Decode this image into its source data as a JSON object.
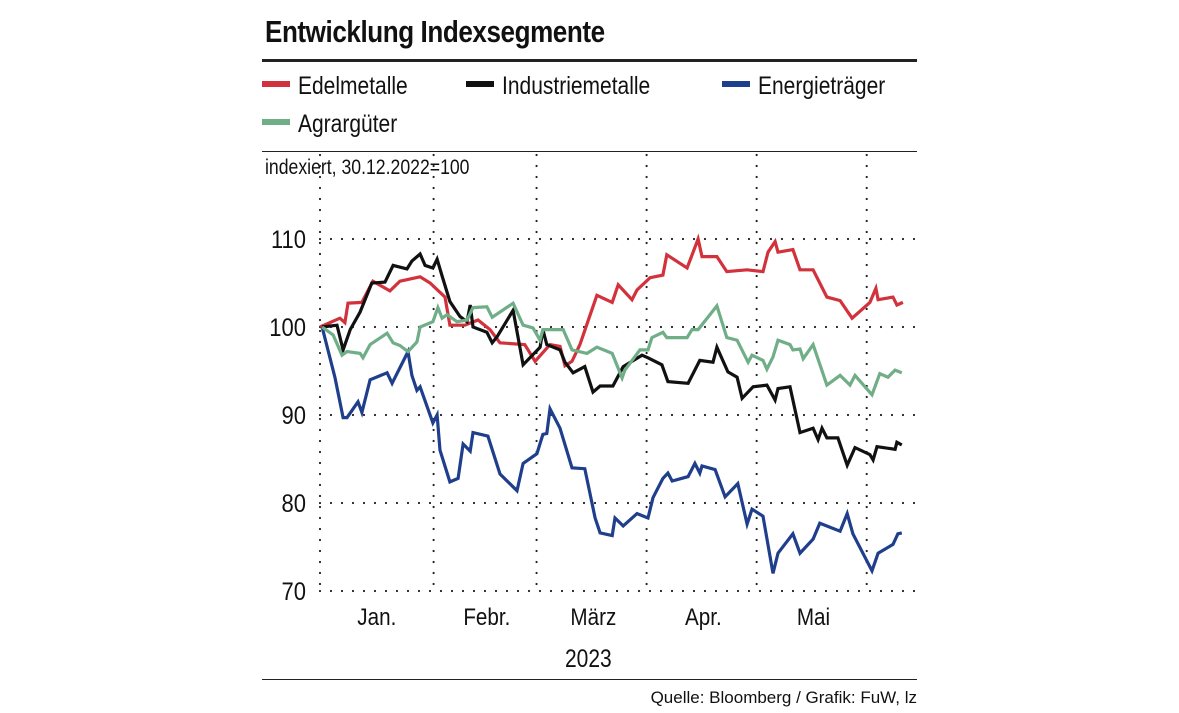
{
  "chart_data": {
    "type": "line",
    "title": "Entwicklung Indexsegmente",
    "subtitle": "indexiert, 30.12.2022=100",
    "xlabel": "2023",
    "ylabel": "",
    "source": "Quelle: Bloomberg / Grafik: FuW, lz",
    "x_unit": "days since 30.12.2022",
    "xlim": [
      0,
      168
    ],
    "ylim": [
      70,
      112
    ],
    "yticks": [
      70,
      80,
      90,
      100,
      110
    ],
    "ytick_labels": [
      "70",
      "80",
      "90",
      "100",
      "110"
    ],
    "month_boundaries": [
      0,
      32,
      61,
      92,
      123,
      154
    ],
    "month_labels": [
      {
        "label": "Jan.",
        "day": 16
      },
      {
        "label": "Febr.",
        "day": 47
      },
      {
        "label": "März",
        "day": 77
      },
      {
        "label": "Apr.",
        "day": 108
      },
      {
        "label": "Mai",
        "day": 139
      }
    ],
    "grid": true,
    "legend_position": "top",
    "series": [
      {
        "name": "Edelmetalle",
        "color": "#d2323c",
        "points": [
          [
            0,
            100
          ],
          [
            5.6,
            101.0
          ],
          [
            7,
            100.5
          ],
          [
            7.9,
            102.7
          ],
          [
            11.8,
            102.8
          ],
          [
            14.9,
            105.2
          ],
          [
            19.7,
            104.1
          ],
          [
            22.5,
            105.2
          ],
          [
            28.2,
            105.7
          ],
          [
            31,
            105.0
          ],
          [
            35.2,
            103.4
          ],
          [
            36.6,
            100.2
          ],
          [
            40.8,
            100.2
          ],
          [
            44.5,
            100.8
          ],
          [
            47.9,
            99.7
          ],
          [
            50.7,
            98.2
          ],
          [
            57.7,
            98.0
          ],
          [
            60.6,
            96.1
          ],
          [
            64.8,
            98.0
          ],
          [
            67.6,
            97.8
          ],
          [
            69,
            95.6
          ],
          [
            71,
            96.1
          ],
          [
            73.2,
            98.0
          ],
          [
            76.1,
            101.4
          ],
          [
            78,
            103.6
          ],
          [
            82.3,
            102.8
          ],
          [
            84,
            104.8
          ],
          [
            87.9,
            103.1
          ],
          [
            89.3,
            104.2
          ],
          [
            93,
            105.6
          ],
          [
            96.6,
            105.9
          ],
          [
            97.7,
            108.2
          ],
          [
            103.4,
            106.7
          ],
          [
            106.5,
            110.0
          ],
          [
            107.6,
            108.0
          ],
          [
            111.8,
            108.0
          ],
          [
            114.6,
            106.3
          ],
          [
            120.3,
            106.5
          ],
          [
            124.8,
            106.3
          ],
          [
            126.2,
            108.5
          ],
          [
            128.2,
            109.7
          ],
          [
            129,
            108.5
          ],
          [
            133.2,
            108.8
          ],
          [
            135.2,
            106.5
          ],
          [
            138.9,
            106.5
          ],
          [
            142.8,
            103.4
          ],
          [
            146.5,
            103.0
          ],
          [
            149.9,
            101.0
          ],
          [
            154.9,
            102.8
          ],
          [
            156.6,
            104.4
          ],
          [
            157.2,
            103.1
          ],
          [
            161.4,
            103.4
          ],
          [
            162.5,
            102.5
          ],
          [
            164.2,
            102.8
          ]
        ]
      },
      {
        "name": "Industriemetalle",
        "color": "#111111",
        "points": [
          [
            0.6,
            100
          ],
          [
            4.8,
            100.2
          ],
          [
            6.5,
            97.4
          ],
          [
            8.5,
            99.7
          ],
          [
            11.3,
            101.7
          ],
          [
            14.6,
            105.0
          ],
          [
            18.3,
            105.1
          ],
          [
            20.6,
            107.0
          ],
          [
            24.5,
            106.6
          ],
          [
            25.9,
            107.5
          ],
          [
            28.2,
            108.3
          ],
          [
            29.6,
            107.0
          ],
          [
            31.8,
            106.7
          ],
          [
            33,
            107.7
          ],
          [
            34.4,
            105.8
          ],
          [
            36.6,
            102.9
          ],
          [
            39.4,
            101.2
          ],
          [
            41.4,
            100.6
          ],
          [
            42.3,
            102.5
          ],
          [
            43.1,
            100.0
          ],
          [
            47,
            99.4
          ],
          [
            48.5,
            98.2
          ],
          [
            49.9,
            98.9
          ],
          [
            54.4,
            101.9
          ],
          [
            57.2,
            95.7
          ],
          [
            62,
            97.7
          ],
          [
            62.8,
            99.7
          ],
          [
            63.9,
            98.0
          ],
          [
            67.6,
            97.4
          ],
          [
            69,
            96.0
          ],
          [
            71.3,
            94.8
          ],
          [
            74.6,
            95.5
          ],
          [
            76.9,
            92.6
          ],
          [
            78.9,
            93.3
          ],
          [
            82.5,
            93.3
          ],
          [
            85.4,
            95.5
          ],
          [
            90.7,
            96.8
          ],
          [
            92.4,
            96.5
          ],
          [
            96.3,
            95.7
          ],
          [
            98,
            93.8
          ],
          [
            103.7,
            93.6
          ],
          [
            107,
            96.2
          ],
          [
            110.7,
            96.0
          ],
          [
            111.8,
            97.7
          ],
          [
            114.9,
            94.9
          ],
          [
            117.5,
            94.3
          ],
          [
            118.9,
            91.9
          ],
          [
            122,
            93.2
          ],
          [
            125.9,
            93.4
          ],
          [
            128.2,
            91.7
          ],
          [
            129,
            93.0
          ],
          [
            132.4,
            93.2
          ],
          [
            135.2,
            88.0
          ],
          [
            138.9,
            88.5
          ],
          [
            140.3,
            87.2
          ],
          [
            141.4,
            88.5
          ],
          [
            142.8,
            87.4
          ],
          [
            145.9,
            87.4
          ],
          [
            148.5,
            84.3
          ],
          [
            150.7,
            86.3
          ],
          [
            154.9,
            85.5
          ],
          [
            155.8,
            84.9
          ],
          [
            156.9,
            86.4
          ],
          [
            162,
            86.1
          ],
          [
            162.5,
            86.9
          ],
          [
            163.9,
            86.6
          ]
        ]
      },
      {
        "name": "Energieträger",
        "color": "#1f3f8c",
        "points": [
          [
            0.6,
            100
          ],
          [
            4.2,
            94.3
          ],
          [
            6.5,
            89.7
          ],
          [
            7.6,
            89.7
          ],
          [
            10.7,
            91.5
          ],
          [
            11.8,
            90.3
          ],
          [
            14.1,
            94.0
          ],
          [
            18.9,
            94.8
          ],
          [
            20.3,
            93.6
          ],
          [
            24.8,
            97.2
          ],
          [
            25.9,
            94.5
          ],
          [
            27.3,
            92.8
          ],
          [
            28.2,
            93.2
          ],
          [
            31.8,
            89.1
          ],
          [
            33,
            90.0
          ],
          [
            33.8,
            86.0
          ],
          [
            36.6,
            82.4
          ],
          [
            38.9,
            82.8
          ],
          [
            40.3,
            86.7
          ],
          [
            42.3,
            85.9
          ],
          [
            43.1,
            88.0
          ],
          [
            47.3,
            87.6
          ],
          [
            50.7,
            83.3
          ],
          [
            55.5,
            81.4
          ],
          [
            57.2,
            84.5
          ],
          [
            61.1,
            85.6
          ],
          [
            62.8,
            87.8
          ],
          [
            63.9,
            87.9
          ],
          [
            64.8,
            90.7
          ],
          [
            67.6,
            88.5
          ],
          [
            71,
            84.0
          ],
          [
            74.6,
            83.9
          ],
          [
            77.5,
            78.3
          ],
          [
            78.9,
            76.6
          ],
          [
            82.3,
            76.3
          ],
          [
            83.1,
            78.3
          ],
          [
            85.4,
            77.4
          ],
          [
            89.3,
            78.8
          ],
          [
            92.4,
            78.3
          ],
          [
            93.8,
            80.6
          ],
          [
            96.6,
            82.8
          ],
          [
            98,
            83.4
          ],
          [
            99.2,
            82.5
          ],
          [
            103.7,
            83.0
          ],
          [
            105.6,
            84.5
          ],
          [
            107,
            83.4
          ],
          [
            107.6,
            84.2
          ],
          [
            111.3,
            83.8
          ],
          [
            114.1,
            80.7
          ],
          [
            117.7,
            82.2
          ],
          [
            120.3,
            77.6
          ],
          [
            121.7,
            79.3
          ],
          [
            124.8,
            78.5
          ],
          [
            127.6,
            72.0
          ],
          [
            129,
            74.3
          ],
          [
            133.2,
            76.5
          ],
          [
            135.2,
            74.3
          ],
          [
            138.9,
            75.9
          ],
          [
            140.8,
            77.7
          ],
          [
            146.5,
            76.8
          ],
          [
            148.5,
            78.8
          ],
          [
            150.1,
            76.5
          ],
          [
            155.5,
            72.3
          ],
          [
            157.2,
            74.3
          ],
          [
            161.4,
            75.3
          ],
          [
            162.8,
            76.5
          ],
          [
            163.9,
            76.6
          ]
        ]
      },
      {
        "name": "Agrargüter",
        "color": "#6fae86",
        "points": [
          [
            0.6,
            100
          ],
          [
            3.7,
            99.1
          ],
          [
            6.2,
            96.8
          ],
          [
            7.6,
            97.2
          ],
          [
            11.3,
            97.0
          ],
          [
            12.1,
            96.5
          ],
          [
            14.1,
            98.0
          ],
          [
            18.9,
            99.3
          ],
          [
            20.6,
            98.2
          ],
          [
            22.5,
            97.9
          ],
          [
            24.8,
            97.2
          ],
          [
            27.3,
            98.3
          ],
          [
            28.2,
            100.0
          ],
          [
            31.8,
            100.6
          ],
          [
            33.2,
            102.2
          ],
          [
            34.4,
            101.0
          ],
          [
            35.8,
            101.4
          ],
          [
            38.6,
            100.6
          ],
          [
            41.4,
            100.8
          ],
          [
            43.1,
            102.2
          ],
          [
            47,
            102.3
          ],
          [
            48.5,
            101.1
          ],
          [
            54.4,
            102.7
          ],
          [
            57.2,
            100.2
          ],
          [
            60,
            99.9
          ],
          [
            62,
            98.5
          ],
          [
            62.8,
            99.7
          ],
          [
            68.5,
            99.7
          ],
          [
            71,
            97.4
          ],
          [
            75.2,
            97.0
          ],
          [
            78,
            97.7
          ],
          [
            82.3,
            97.0
          ],
          [
            85.1,
            94.2
          ],
          [
            85.9,
            95.1
          ],
          [
            90.1,
            97.4
          ],
          [
            92.4,
            97.4
          ],
          [
            93.5,
            98.8
          ],
          [
            96.6,
            99.4
          ],
          [
            97.7,
            98.8
          ],
          [
            103.4,
            98.8
          ],
          [
            104.8,
            99.7
          ],
          [
            106.5,
            99.7
          ],
          [
            111.8,
            102.4
          ],
          [
            114.6,
            98.8
          ],
          [
            117.5,
            98.5
          ],
          [
            120.6,
            96.0
          ],
          [
            121.7,
            96.8
          ],
          [
            124.8,
            96.2
          ],
          [
            125.9,
            95.2
          ],
          [
            127.6,
            96.6
          ],
          [
            129,
            98.5
          ],
          [
            132.4,
            98.0
          ],
          [
            133.2,
            97.4
          ],
          [
            135.2,
            97.5
          ],
          [
            136.1,
            96.4
          ],
          [
            138.9,
            98.0
          ],
          [
            142.8,
            93.4
          ],
          [
            146.5,
            94.5
          ],
          [
            149.3,
            93.4
          ],
          [
            150.7,
            94.5
          ],
          [
            155.5,
            92.3
          ],
          [
            157.7,
            94.7
          ],
          [
            160,
            94.3
          ],
          [
            162,
            95.1
          ],
          [
            163.9,
            94.8
          ]
        ]
      }
    ]
  }
}
